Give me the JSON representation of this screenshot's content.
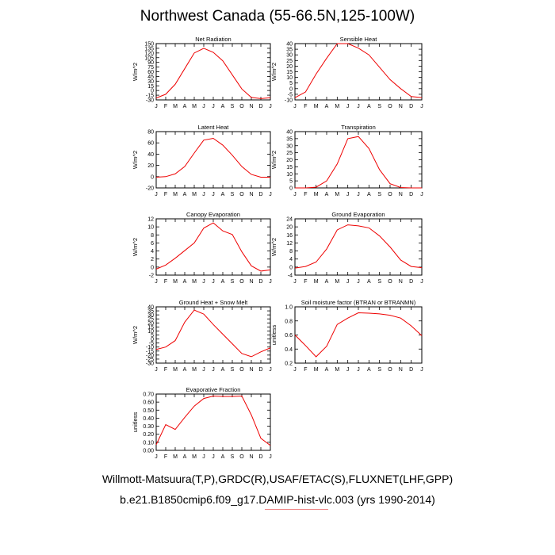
{
  "title": "Northwest Canada (55-66.5N,125-100W)",
  "footer": {
    "line1": "Willmott-Matsuura(T,P),GRDC(R),USAF/ETAC(S),FLUXNET(LHF,GPP)",
    "line2": "b.e21.B1850cmip6.f09_g17.DAMIP-hist-vlc.003 (yrs 1990-2014)"
  },
  "colors": {
    "line": "#ee0000",
    "axis": "#000000"
  },
  "chart_data": [
    {
      "type": "line",
      "title": "Net Radiation",
      "ylabel": "W/m^2",
      "categories": [
        "J",
        "F",
        "M",
        "A",
        "M",
        "J",
        "J",
        "A",
        "S",
        "O",
        "N",
        "D",
        "J"
      ],
      "ylim": [
        -30,
        150
      ],
      "yticks": [
        -30,
        -15,
        0,
        15,
        30,
        45,
        60,
        75,
        90,
        105,
        120,
        135,
        150
      ],
      "series": [
        {
          "name": "Net Radiation",
          "values": [
            -24,
            -12,
            20,
            70,
            120,
            135,
            122,
            95,
            50,
            5,
            -22,
            -26,
            -23
          ]
        }
      ]
    },
    {
      "type": "line",
      "title": "Sensible Heat",
      "ylabel": "W/m^2",
      "categories": [
        "J",
        "F",
        "M",
        "A",
        "M",
        "J",
        "J",
        "A",
        "S",
        "O",
        "N",
        "D",
        "J"
      ],
      "ylim": [
        -10,
        40
      ],
      "yticks": [
        -10,
        -5,
        0,
        5,
        10,
        15,
        20,
        25,
        30,
        35,
        40
      ],
      "series": [
        {
          "name": "Sensible Heat",
          "values": [
            -8,
            -3,
            13,
            27,
            40,
            40,
            36,
            30,
            19,
            8,
            0,
            -7,
            -8
          ]
        }
      ]
    },
    {
      "type": "line",
      "title": "Latent Heat",
      "ylabel": "W/m^2",
      "categories": [
        "J",
        "F",
        "M",
        "A",
        "M",
        "J",
        "J",
        "A",
        "S",
        "O",
        "N",
        "D",
        "J"
      ],
      "ylim": [
        -20,
        80
      ],
      "yticks": [
        -20,
        0,
        20,
        40,
        60,
        80
      ],
      "series": [
        {
          "name": "Latent Heat",
          "values": [
            -1,
            0,
            5,
            18,
            42,
            65,
            68,
            56,
            38,
            18,
            4,
            -1,
            -1
          ]
        }
      ]
    },
    {
      "type": "line",
      "title": "Transpiration",
      "ylabel": "W/m^2",
      "categories": [
        "J",
        "F",
        "M",
        "A",
        "M",
        "J",
        "J",
        "A",
        "S",
        "O",
        "N",
        "D",
        "J"
      ],
      "ylim": [
        0,
        40
      ],
      "yticks": [
        0,
        5,
        10,
        15,
        20,
        25,
        30,
        35,
        40
      ],
      "series": [
        {
          "name": "Transpiration",
          "values": [
            0,
            0,
            0.5,
            5,
            17,
            35,
            36.5,
            28,
            13,
            3,
            0.3,
            0,
            0
          ]
        }
      ]
    },
    {
      "type": "line",
      "title": "Canopy Evaporation",
      "ylabel": "W/m^2",
      "categories": [
        "J",
        "F",
        "M",
        "A",
        "M",
        "J",
        "J",
        "A",
        "S",
        "O",
        "N",
        "D",
        "J"
      ],
      "ylim": [
        -2,
        12
      ],
      "yticks": [
        -2,
        0,
        2,
        4,
        6,
        8,
        10,
        12
      ],
      "series": [
        {
          "name": "Canopy Evaporation",
          "values": [
            -0.5,
            0.5,
            2.2,
            4.1,
            6,
            9.7,
            11,
            9,
            8.1,
            3.8,
            0.3,
            -1,
            -0.7
          ]
        }
      ]
    },
    {
      "type": "line",
      "title": "Ground Evaporation",
      "ylabel": "W/m^2",
      "categories": [
        "J",
        "F",
        "M",
        "A",
        "M",
        "J",
        "J",
        "A",
        "S",
        "O",
        "N",
        "D",
        "J"
      ],
      "ylim": [
        -4,
        24
      ],
      "yticks": [
        -4,
        0,
        4,
        8,
        12,
        16,
        20,
        24
      ],
      "series": [
        {
          "name": "Ground Evaporation",
          "values": [
            -0.5,
            0.3,
            2.5,
            9,
            18.5,
            21,
            20.5,
            19.5,
            15.5,
            10,
            3.5,
            0.3,
            -0.3
          ]
        }
      ]
    },
    {
      "type": "line",
      "title": "Ground Heat + Snow Melt",
      "ylabel": "W/m^2",
      "categories": [
        "J",
        "F",
        "M",
        "A",
        "M",
        "J",
        "J",
        "A",
        "S",
        "O",
        "N",
        "D",
        "J"
      ],
      "ylim": [
        -30,
        40
      ],
      "yticks": [
        -30,
        -25,
        -20,
        -15,
        -10,
        -5,
        0,
        5,
        10,
        15,
        20,
        25,
        30,
        35,
        40
      ],
      "series": [
        {
          "name": "Ground Heat + Snow Melt",
          "values": [
            -13,
            -10,
            -2,
            21,
            36,
            31,
            18,
            6,
            -6,
            -18,
            -22,
            -16,
            -11
          ]
        }
      ]
    },
    {
      "type": "line",
      "title": "Soil moisture factor (BTRAN or BTRANMN)",
      "ylabel": "unitless",
      "categories": [
        "J",
        "F",
        "M",
        "A",
        "M",
        "J",
        "J",
        "A",
        "S",
        "O",
        "N",
        "D",
        "J"
      ],
      "ylim": [
        0.2,
        1.0
      ],
      "yticks": [
        0.2,
        0.4,
        0.6,
        0.8,
        1.0
      ],
      "series": [
        {
          "name": "Soil moisture factor",
          "values": [
            0.6,
            0.45,
            0.29,
            0.44,
            0.75,
            0.84,
            0.915,
            0.91,
            0.9,
            0.88,
            0.84,
            0.73,
            0.59
          ]
        }
      ]
    },
    {
      "type": "line",
      "title": "Evaporative Fraction",
      "ylabel": "unitless",
      "categories": [
        "J",
        "F",
        "M",
        "A",
        "M",
        "J",
        "J",
        "A",
        "S",
        "O",
        "N",
        "D",
        "J"
      ],
      "ylim": [
        0.0,
        0.7
      ],
      "yticks": [
        0.0,
        0.1,
        0.2,
        0.3,
        0.4,
        0.5,
        0.6,
        0.7
      ],
      "ytick_labels": [
        "0.00",
        "0.10",
        "0.20",
        "0.30",
        "0.40",
        "0.50",
        "0.60",
        "0.70"
      ],
      "series": [
        {
          "name": "Evaporative Fraction",
          "values": [
            0.07,
            0.32,
            0.26,
            0.41,
            0.55,
            0.645,
            0.675,
            0.67,
            0.67,
            0.675,
            0.44,
            0.15,
            0.06
          ]
        }
      ]
    }
  ]
}
